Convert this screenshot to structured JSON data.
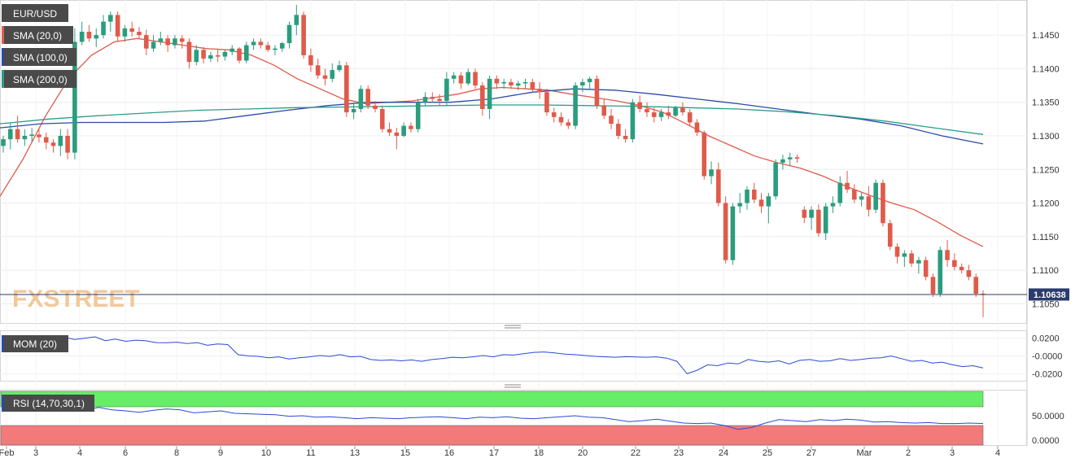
{
  "chart_data": {
    "type": "candlestick",
    "symbol": "EUR/USD",
    "indicator_labels": {
      "sma20": "SMA (20,0)",
      "sma100": "SMA (100,0)",
      "sma200": "SMA (200,0)",
      "mom": "MOM (20)",
      "rsi": "RSI (14,70,30,1)"
    },
    "last_price": "1.10638",
    "last_price_value": 1.10638,
    "watermark": "FXSTREET",
    "x_ticks": [
      "Feb",
      "3",
      "4",
      "6",
      "8",
      "9",
      "10",
      "11",
      "13",
      "15",
      "16",
      "17",
      "18",
      "20",
      "22",
      "23",
      "24",
      "25",
      "27",
      "Mar",
      "2",
      "3",
      "4"
    ],
    "price_axis": {
      "ticks": [
        "1.1450",
        "1.1400",
        "1.1350",
        "1.1300",
        "1.1250",
        "1.1200",
        "1.1150",
        "1.1100",
        "1.1050"
      ],
      "range": [
        1.1025,
        1.1495
      ]
    },
    "mom_axis": {
      "ticks": [
        "0.0200",
        "-0.0000",
        "-0.0200"
      ],
      "range": [
        -0.027,
        0.027
      ]
    },
    "rsi_axis": {
      "ticks": [
        "50.0000",
        "0.0000"
      ],
      "range": [
        0,
        70
      ],
      "overbought": 70,
      "oversold": 30
    },
    "candles": [
      [
        1.1285,
        1.13,
        1.1275,
        1.1295
      ],
      [
        1.1295,
        1.132,
        1.128,
        1.131
      ],
      [
        1.131,
        1.133,
        1.129,
        1.1295
      ],
      [
        1.1295,
        1.131,
        1.1285,
        1.13
      ],
      [
        1.13,
        1.1312,
        1.129,
        1.1302
      ],
      [
        1.1302,
        1.131,
        1.129,
        1.1298
      ],
      [
        1.1298,
        1.1305,
        1.128,
        1.129
      ],
      [
        1.129,
        1.1295,
        1.1275,
        1.1285
      ],
      [
        1.1285,
        1.131,
        1.127,
        1.13
      ],
      [
        1.13,
        1.131,
        1.1265,
        1.1275
      ],
      [
        1.1275,
        1.146,
        1.1265,
        1.144
      ],
      [
        1.144,
        1.147,
        1.1435,
        1.1455
      ],
      [
        1.1455,
        1.1465,
        1.144,
        1.1445
      ],
      [
        1.1445,
        1.146,
        1.1432,
        1.145
      ],
      [
        1.145,
        1.148,
        1.1445,
        1.147
      ],
      [
        1.147,
        1.1485,
        1.1455,
        1.148
      ],
      [
        1.148,
        1.1485,
        1.144,
        1.1448
      ],
      [
        1.1448,
        1.1465,
        1.144,
        1.146
      ],
      [
        1.146,
        1.147,
        1.1448,
        1.1455
      ],
      [
        1.1455,
        1.1462,
        1.1445,
        1.145
      ],
      [
        1.145,
        1.1458,
        1.142,
        1.143
      ],
      [
        1.143,
        1.145,
        1.1425,
        1.144
      ],
      [
        1.144,
        1.1455,
        1.1435,
        1.1445
      ],
      [
        1.1445,
        1.145,
        1.1425,
        1.1435
      ],
      [
        1.1435,
        1.145,
        1.143,
        1.1445
      ],
      [
        1.1445,
        1.145,
        1.143,
        1.144
      ],
      [
        1.144,
        1.1445,
        1.14,
        1.141
      ],
      [
        1.141,
        1.1435,
        1.1405,
        1.1428
      ],
      [
        1.1428,
        1.1432,
        1.1408,
        1.1415
      ],
      [
        1.1415,
        1.1425,
        1.141,
        1.142
      ],
      [
        1.142,
        1.143,
        1.141,
        1.1418
      ],
      [
        1.1418,
        1.1428,
        1.1412,
        1.1425
      ],
      [
        1.1425,
        1.1435,
        1.142,
        1.143
      ],
      [
        1.143,
        1.1432,
        1.1408,
        1.1412
      ],
      [
        1.1412,
        1.144,
        1.1408,
        1.1435
      ],
      [
        1.1435,
        1.1445,
        1.1428,
        1.144
      ],
      [
        1.144,
        1.1445,
        1.143,
        1.1435
      ],
      [
        1.1435,
        1.144,
        1.1425,
        1.1428
      ],
      [
        1.1428,
        1.1435,
        1.142,
        1.143
      ],
      [
        1.143,
        1.144,
        1.1425,
        1.1438
      ],
      [
        1.1438,
        1.147,
        1.143,
        1.1465
      ],
      [
        1.1465,
        1.1495,
        1.145,
        1.148
      ],
      [
        1.148,
        1.1485,
        1.1415,
        1.142
      ],
      [
        1.142,
        1.143,
        1.1395,
        1.1405
      ],
      [
        1.1405,
        1.1415,
        1.1385,
        1.139
      ],
      [
        1.139,
        1.14,
        1.1375,
        1.1385
      ],
      [
        1.1385,
        1.1408,
        1.138,
        1.1398
      ],
      [
        1.1398,
        1.1412,
        1.1395,
        1.1405
      ],
      [
        1.1405,
        1.141,
        1.1328,
        1.1335
      ],
      [
        1.1335,
        1.135,
        1.1325,
        1.134
      ],
      [
        1.134,
        1.1375,
        1.1335,
        1.137
      ],
      [
        1.137,
        1.1375,
        1.134,
        1.1345
      ],
      [
        1.1345,
        1.1352,
        1.1335,
        1.134
      ],
      [
        1.134,
        1.1345,
        1.1305,
        1.131
      ],
      [
        1.131,
        1.132,
        1.13,
        1.1305
      ],
      [
        1.1305,
        1.1312,
        1.128,
        1.13
      ],
      [
        1.13,
        1.132,
        1.1298,
        1.1315
      ],
      [
        1.1315,
        1.132,
        1.1305,
        1.131
      ],
      [
        1.131,
        1.1355,
        1.1305,
        1.135
      ],
      [
        1.135,
        1.1365,
        1.1345,
        1.1358
      ],
      [
        1.1358,
        1.1365,
        1.135,
        1.1355
      ],
      [
        1.1355,
        1.1362,
        1.1345,
        1.1352
      ],
      [
        1.1352,
        1.1395,
        1.1345,
        1.1385
      ],
      [
        1.1385,
        1.1395,
        1.1378,
        1.139
      ],
      [
        1.139,
        1.1395,
        1.137,
        1.1378
      ],
      [
        1.1378,
        1.14,
        1.1375,
        1.1395
      ],
      [
        1.1395,
        1.14,
        1.137,
        1.1375
      ],
      [
        1.1375,
        1.138,
        1.133,
        1.134
      ],
      [
        1.134,
        1.139,
        1.1325,
        1.1385
      ],
      [
        1.1385,
        1.139,
        1.137,
        1.1378
      ],
      [
        1.1378,
        1.1385,
        1.137,
        1.138
      ],
      [
        1.138,
        1.1385,
        1.137,
        1.1375
      ],
      [
        1.1375,
        1.1382,
        1.1368,
        1.1378
      ],
      [
        1.1378,
        1.1385,
        1.137,
        1.138
      ],
      [
        1.138,
        1.1385,
        1.1365,
        1.137
      ],
      [
        1.137,
        1.138,
        1.1355,
        1.1365
      ],
      [
        1.1365,
        1.137,
        1.133,
        1.1335
      ],
      [
        1.1335,
        1.1342,
        1.132,
        1.1328
      ],
      [
        1.1328,
        1.1335,
        1.1315,
        1.132
      ],
      [
        1.132,
        1.1325,
        1.131,
        1.1315
      ],
      [
        1.1315,
        1.138,
        1.131,
        1.1375
      ],
      [
        1.1375,
        1.1385,
        1.1365,
        1.138
      ],
      [
        1.138,
        1.1388,
        1.1368,
        1.1385
      ],
      [
        1.1385,
        1.139,
        1.134,
        1.1345
      ],
      [
        1.1345,
        1.1355,
        1.1325,
        1.133
      ],
      [
        1.133,
        1.134,
        1.131,
        1.1318
      ],
      [
        1.1318,
        1.1325,
        1.1295,
        1.13
      ],
      [
        1.13,
        1.131,
        1.129,
        1.1295
      ],
      [
        1.1295,
        1.1355,
        1.129,
        1.135
      ],
      [
        1.135,
        1.136,
        1.1335,
        1.134
      ],
      [
        1.134,
        1.135,
        1.1328,
        1.1335
      ],
      [
        1.1335,
        1.1342,
        1.132,
        1.1328
      ],
      [
        1.1328,
        1.134,
        1.1322,
        1.1335
      ],
      [
        1.1335,
        1.1345,
        1.1325,
        1.133
      ],
      [
        1.133,
        1.1345,
        1.1328,
        1.1342
      ],
      [
        1.1342,
        1.135,
        1.133,
        1.1335
      ],
      [
        1.1335,
        1.134,
        1.1315,
        1.132
      ],
      [
        1.132,
        1.1325,
        1.13,
        1.1305
      ],
      [
        1.1305,
        1.1308,
        1.1235,
        1.124
      ],
      [
        1.124,
        1.1262,
        1.1228,
        1.125
      ],
      [
        1.125,
        1.126,
        1.1195,
        1.12
      ],
      [
        1.12,
        1.121,
        1.111,
        1.1115
      ],
      [
        1.1115,
        1.12,
        1.1108,
        1.1195
      ],
      [
        1.1195,
        1.1215,
        1.1185,
        1.12
      ],
      [
        1.12,
        1.1225,
        1.119,
        1.122
      ],
      [
        1.122,
        1.123,
        1.12,
        1.1205
      ],
      [
        1.1205,
        1.1215,
        1.1185,
        1.1195
      ],
      [
        1.1195,
        1.1215,
        1.117,
        1.121
      ],
      [
        1.121,
        1.1265,
        1.1205,
        1.126
      ],
      [
        1.126,
        1.1272,
        1.125,
        1.1265
      ],
      [
        1.1265,
        1.1275,
        1.1255,
        1.1268
      ],
      [
        1.1268,
        1.1272,
        1.126,
        1.1266
      ],
      [
        1.119,
        1.1195,
        1.117,
        1.1178
      ],
      [
        1.1178,
        1.1195,
        1.116,
        1.119
      ],
      [
        1.119,
        1.1198,
        1.115,
        1.1155
      ],
      [
        1.1155,
        1.12,
        1.1145,
        1.1195
      ],
      [
        1.1195,
        1.121,
        1.1185,
        1.12
      ],
      [
        1.12,
        1.124,
        1.1195,
        1.123
      ],
      [
        1.123,
        1.1248,
        1.1215,
        1.122
      ],
      [
        1.122,
        1.1228,
        1.12,
        1.1205
      ],
      [
        1.1205,
        1.1215,
        1.1195,
        1.121
      ],
      [
        1.121,
        1.1225,
        1.118,
        1.119
      ],
      [
        1.119,
        1.1235,
        1.1185,
        1.123
      ],
      [
        1.123,
        1.1235,
        1.1165,
        1.117
      ],
      [
        1.117,
        1.1175,
        1.113,
        1.1135
      ],
      [
        1.1135,
        1.114,
        1.111,
        1.112
      ],
      [
        1.112,
        1.113,
        1.1105,
        1.1125
      ],
      [
        1.1125,
        1.113,
        1.1105,
        1.111
      ],
      [
        1.111,
        1.112,
        1.1095,
        1.1115
      ],
      [
        1.1115,
        1.112,
        1.1085,
        1.109
      ],
      [
        1.109,
        1.1095,
        1.106,
        1.1065
      ],
      [
        1.1065,
        1.1135,
        1.106,
        1.113
      ],
      [
        1.113,
        1.1145,
        1.1105,
        1.1115
      ],
      [
        1.1115,
        1.1125,
        1.11,
        1.1105
      ],
      [
        1.1105,
        1.111,
        1.1095,
        1.11
      ],
      [
        1.11,
        1.1108,
        1.1085,
        1.109
      ],
      [
        1.109,
        1.1095,
        1.106,
        1.1065
      ],
      [
        1.1065,
        1.107,
        1.103,
        1.10638
      ]
    ],
    "sma20": [
      [
        1.121,
        1.1265,
        1.133,
        1.1385,
        1.142,
        1.144,
        1.1445,
        1.144,
        1.1435,
        1.143,
        1.1428,
        1.142,
        1.1405,
        1.1385,
        1.137,
        1.1355,
        1.1348,
        1.135,
        1.1352,
        1.1357,
        1.1362,
        1.137,
        1.1372,
        1.137,
        1.1368,
        1.1362,
        1.1357,
        1.1352,
        1.1345,
        1.1335,
        1.1318,
        1.13,
        1.1285,
        1.127,
        1.126,
        1.1252,
        1.124,
        1.1225,
        1.1212,
        1.12,
        1.119,
        1.1172,
        1.1152,
        1.1135
      ]
    ],
    "sma100": [
      1.1312,
      1.1318,
      1.132,
      1.132,
      1.132,
      1.1322,
      1.133,
      1.1338,
      1.1345,
      1.135,
      1.135,
      1.135,
      1.1355,
      1.1365,
      1.137,
      1.1368,
      1.1362,
      1.1355,
      1.1348,
      1.134,
      1.1332,
      1.1325,
      1.1315,
      1.13,
      1.1288
    ],
    "sma200": [
      1.1318,
      1.1325,
      1.133,
      1.1334,
      1.1338,
      1.134,
      1.1342,
      1.1343,
      1.1344,
      1.1345,
      1.1346,
      1.1346,
      1.1345,
      1.1344,
      1.1342,
      1.134,
      1.1336,
      1.133,
      1.1322,
      1.1312,
      1.1302
    ],
    "mom": [
      0.015,
      0.0175,
      0.019,
      0.0205,
      0.0188,
      0.0195,
      0.021,
      0.0185,
      0.02,
      0.0215,
      0.0172,
      0.019,
      0.0165,
      0.0178,
      0.017,
      0.015,
      0.0148,
      0.0155,
      0.014,
      0.015,
      0.012,
      0.0135,
      0.0128,
      0.0015,
      0.0,
      -0.0005,
      -0.002,
      -0.001,
      -0.0035,
      -0.002,
      -0.001,
      0.0005,
      -0.0005,
      0.0015,
      -0.001,
      -0.0005,
      -0.004,
      -0.005,
      -0.0045,
      -0.0055,
      -0.0045,
      -0.006,
      -0.004,
      -0.003,
      -0.0015,
      -0.002,
      -0.001,
      0.0005,
      -0.001,
      0.0015,
      0.001,
      0.0025,
      0.004,
      0.0045,
      0.0035,
      0.002,
      0.0015,
      0.0005,
      -0.0005,
      -0.001,
      -0.0015,
      -0.0008,
      -0.0012,
      -0.0015,
      -0.001,
      -0.0025,
      -0.006,
      -0.02,
      -0.016,
      -0.01,
      -0.011,
      -0.008,
      -0.009,
      -0.004,
      -0.006,
      -0.007,
      -0.0055,
      -0.009,
      -0.005,
      -0.004,
      -0.006,
      -0.0055,
      -0.003,
      -0.005,
      -0.004,
      -0.0025,
      -0.002,
      0.0,
      -0.003,
      -0.006,
      -0.005,
      -0.008,
      -0.007,
      -0.01,
      -0.012,
      -0.011,
      -0.0135
    ],
    "rsi": [
      70,
      67,
      66,
      63,
      66,
      68,
      61,
      67,
      62,
      60,
      57,
      61,
      64,
      62,
      56,
      58,
      60,
      55,
      54,
      53,
      52,
      49,
      50,
      47,
      48,
      46,
      44,
      46,
      45,
      44,
      46,
      47,
      48,
      46,
      44,
      47,
      46,
      48,
      45,
      44,
      46,
      48,
      50,
      47,
      46,
      42,
      38,
      40,
      43,
      39,
      35,
      34,
      35,
      30,
      22,
      26,
      35,
      42,
      40,
      38,
      42,
      40,
      43,
      41,
      37,
      38,
      36,
      35,
      36,
      34,
      34,
      35,
      34
    ]
  }
}
